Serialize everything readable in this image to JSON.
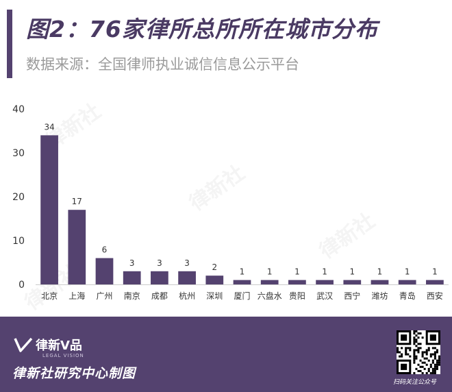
{
  "header": {
    "title": "图2：76家律所总所所在城市分布",
    "source": "数据来源：全国律师执业诚信信息公示平台"
  },
  "watermark_text": "律新社",
  "colors": {
    "accent": "#54426f",
    "bar": "#54426f",
    "footer": "#54426f"
  },
  "footer": {
    "logo": "律新V品",
    "logo_sub": "LEGAL VISION",
    "credit": "律新社研究中心制图",
    "qr_caption": "扫码关注公众号",
    "qr_icon": "qr-code-icon"
  },
  "chart_data": {
    "type": "bar",
    "title": "图2：76家律所总所所在城市分布",
    "xlabel": "",
    "ylabel": "",
    "ylim": [
      0,
      40
    ],
    "yticks": [
      0,
      10,
      20,
      30,
      40
    ],
    "grid": false,
    "categories": [
      "北京",
      "上海",
      "广州",
      "南京",
      "成都",
      "杭州",
      "深圳",
      "厦门",
      "六盘水",
      "贵阳",
      "武汉",
      "西宁",
      "潍坊",
      "青岛",
      "西安"
    ],
    "values": [
      34,
      17,
      6,
      3,
      3,
      3,
      2,
      1,
      1,
      1,
      1,
      1,
      1,
      1,
      1
    ],
    "data_labels": true
  }
}
